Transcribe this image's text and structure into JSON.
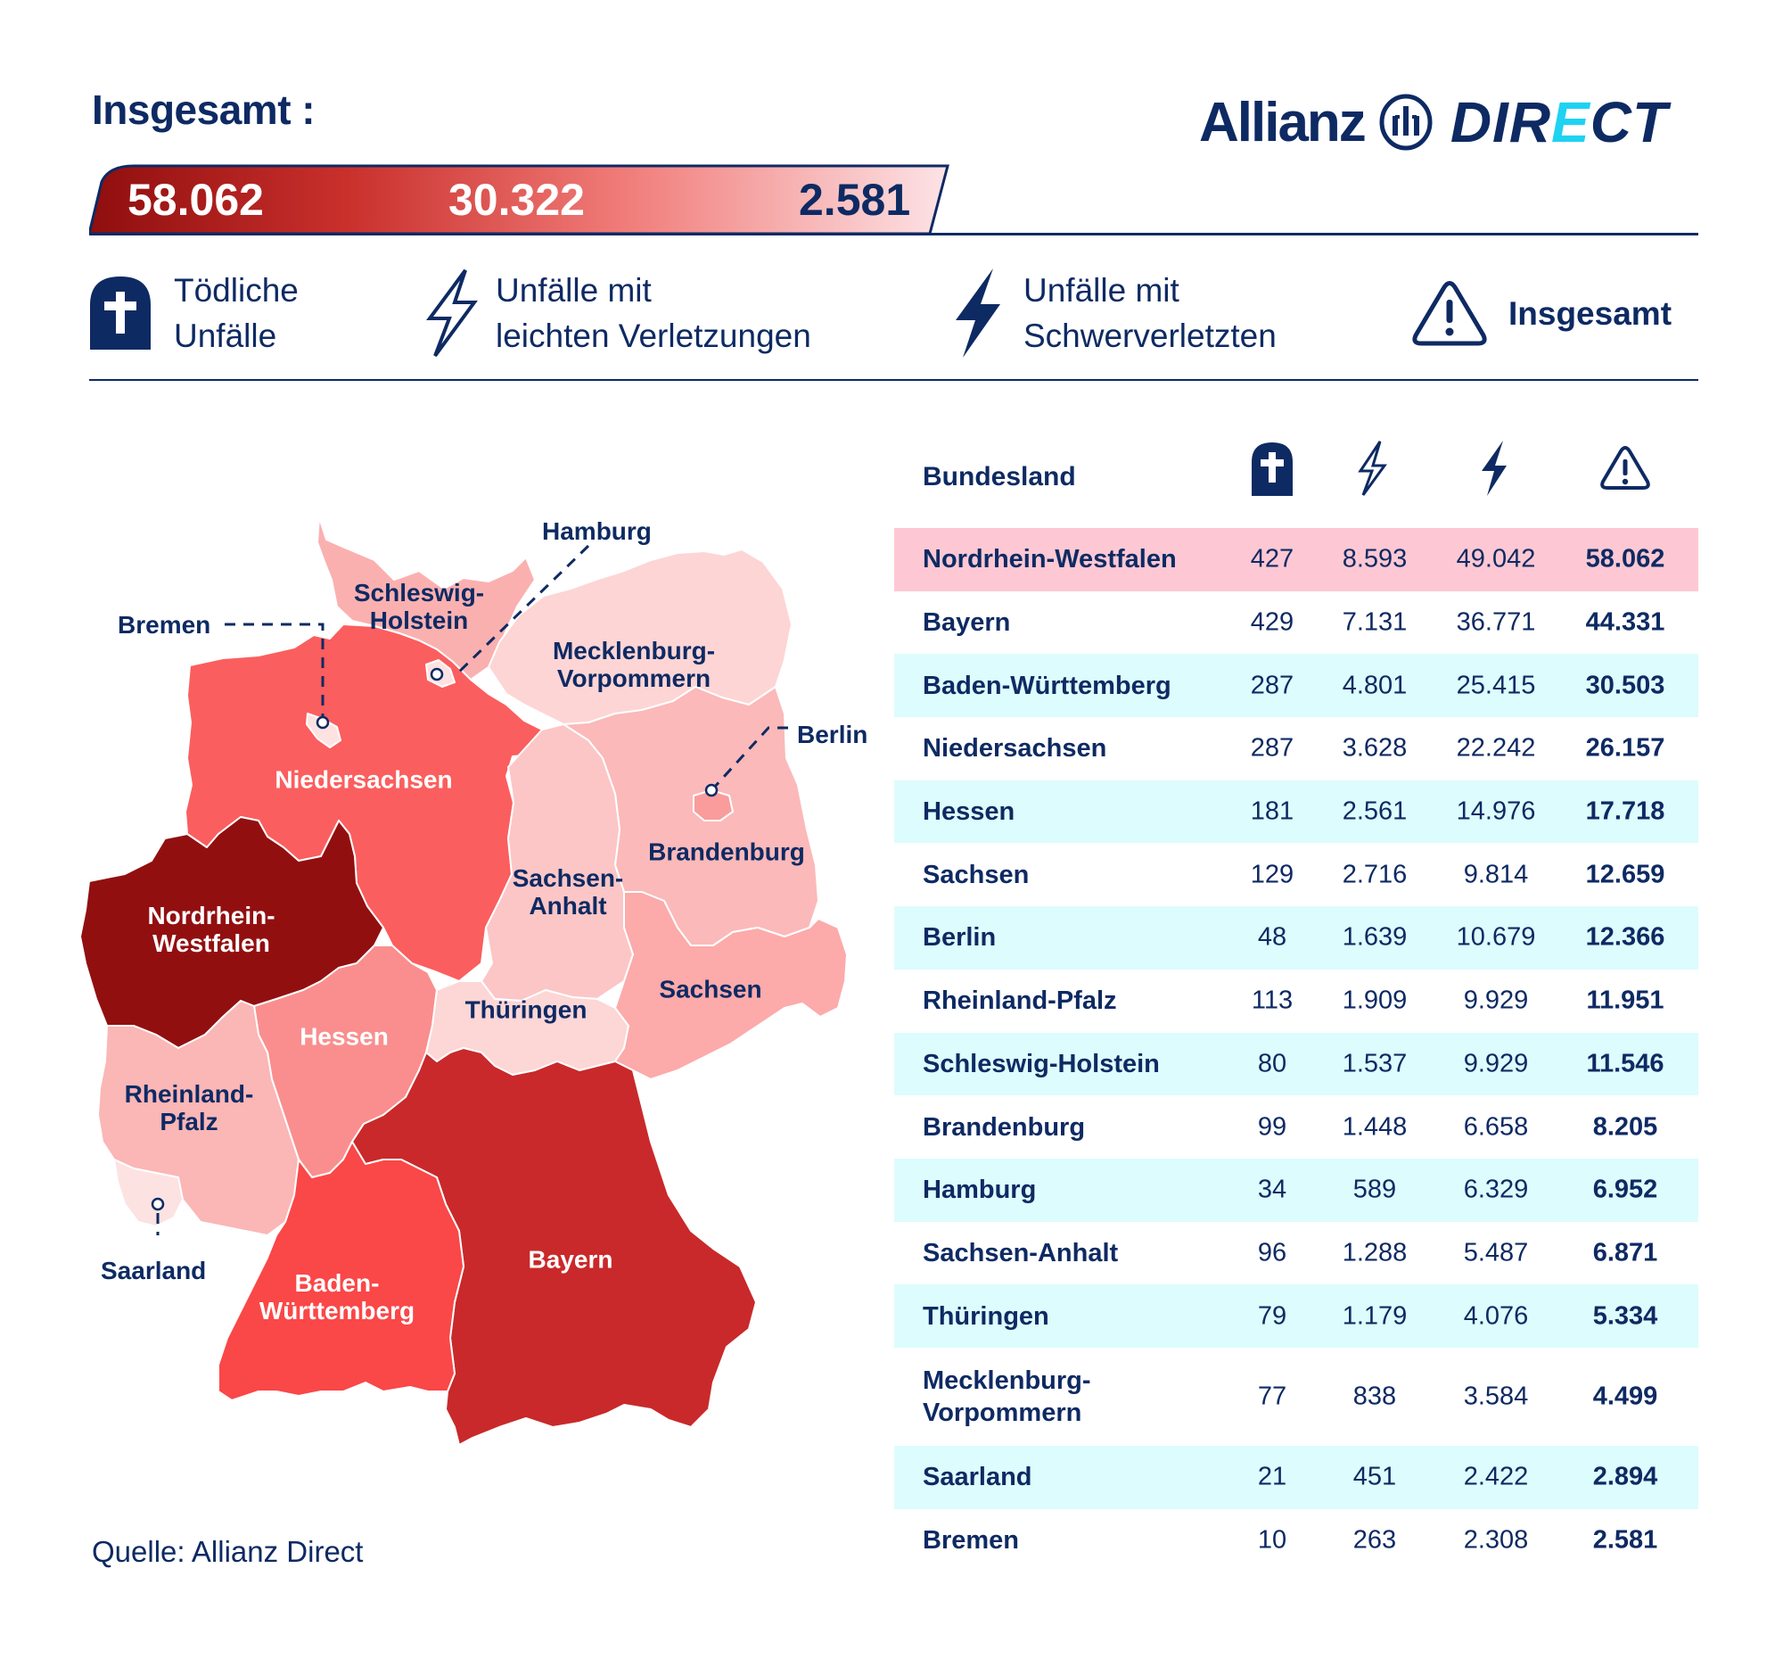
{
  "header": {
    "title": "Insgesamt :",
    "logo": {
      "brand": "Allianz",
      "product_pre": "DIR",
      "product_e": "E",
      "product_post": "CT"
    }
  },
  "totals": {
    "values": [
      "58.062",
      "30.322",
      "2.581"
    ],
    "gradient_colors": [
      "#8f0e0e",
      "#c9302c",
      "#f07b78",
      "#fde3e6"
    ]
  },
  "legend": [
    {
      "icon": "tombstone-icon",
      "line1": "Tödliche",
      "line2": "Unfälle"
    },
    {
      "icon": "lightning-outline-icon",
      "line1": "Unfälle mit",
      "line2": "leichten Verletzungen"
    },
    {
      "icon": "lightning-filled-icon",
      "line1": "Unfälle mit",
      "line2": "Schwerverletzten"
    },
    {
      "icon": "warning-icon",
      "line1": "Insgesamt",
      "line2": ""
    }
  ],
  "map": {
    "regions": [
      {
        "name": "Schleswig-Holstein",
        "label_lines": [
          "Schleswig-",
          "Holstein"
        ],
        "color": "#fbb0b0",
        "label_color": "blue"
      },
      {
        "name": "Mecklenburg-Vorpommern",
        "label_lines": [
          "Mecklenburg-",
          "Vorpommern"
        ],
        "color": "#fdd5d5",
        "label_color": "blue"
      },
      {
        "name": "Niedersachsen",
        "label_lines": [
          "Niedersachsen"
        ],
        "color": "#fb5e5e",
        "label_color": "white"
      },
      {
        "name": "Brandenburg",
        "label_lines": [
          "Brandenburg"
        ],
        "color": "#fbb9b9",
        "label_color": "blue"
      },
      {
        "name": "Sachsen-Anhalt",
        "label_lines": [
          "Sachsen-",
          "Anhalt"
        ],
        "color": "#fcc6c6",
        "label_color": "blue"
      },
      {
        "name": "Nordrhein-Westfalen",
        "label_lines": [
          "Nordrhein-",
          "Westfalen"
        ],
        "color": "#920f10",
        "label_color": "white"
      },
      {
        "name": "Thüringen",
        "label_lines": [
          "Thüringen"
        ],
        "color": "#fdd6d6",
        "label_color": "blue"
      },
      {
        "name": "Sachsen",
        "label_lines": [
          "Sachsen"
        ],
        "color": "#fcaaaa",
        "label_color": "blue"
      },
      {
        "name": "Hessen",
        "label_lines": [
          "Hessen"
        ],
        "color": "#fa8e8e",
        "label_color": "white"
      },
      {
        "name": "Rheinland-Pfalz",
        "label_lines": [
          "Rheinland-",
          "Pfalz"
        ],
        "color": "#fbb6b6",
        "label_color": "blue"
      },
      {
        "name": "Bayern",
        "label_lines": [
          "Bayern"
        ],
        "color": "#c9292a",
        "label_color": "white"
      },
      {
        "name": "Baden-Württemberg",
        "label_lines": [
          "Baden-",
          "Württemberg"
        ],
        "color": "#fa4748",
        "label_color": "white"
      },
      {
        "name": "Saarland",
        "label_lines": [
          "Saarland"
        ],
        "color": "#fde2e2",
        "label_color": "blue"
      }
    ],
    "callouts": {
      "hamburg": "Hamburg",
      "bremen": "Bremen",
      "berlin": "Berlin",
      "saarland": "Saarland"
    }
  },
  "source": "Quelle: Allianz Direct",
  "table": {
    "header": {
      "name": "Bundesland",
      "icons": [
        "tombstone-icon",
        "lightning-outline-icon",
        "lightning-filled-icon",
        "warning-icon"
      ]
    },
    "rows": [
      {
        "name": "Nordrhein-Westfalen",
        "fatal": "427",
        "light": "8.593",
        "severe": "49.042",
        "total": "58.062",
        "bg": "pink"
      },
      {
        "name": "Bayern",
        "fatal": "429",
        "light": "7.131",
        "severe": "36.771",
        "total": "44.331",
        "bg": "white"
      },
      {
        "name": "Baden-Württemberg",
        "fatal": "287",
        "light": "4.801",
        "severe": "25.415",
        "total": "30.503",
        "bg": "cyan"
      },
      {
        "name": "Niedersachsen",
        "fatal": "287",
        "light": "3.628",
        "severe": "22.242",
        "total": "26.157",
        "bg": "white"
      },
      {
        "name": "Hessen",
        "fatal": "181",
        "light": "2.561",
        "severe": "14.976",
        "total": "17.718",
        "bg": "cyan"
      },
      {
        "name": "Sachsen",
        "fatal": "129",
        "light": "2.716",
        "severe": "9.814",
        "total": "12.659",
        "bg": "white"
      },
      {
        "name": "Berlin",
        "fatal": "48",
        "light": "1.639",
        "severe": "10.679",
        "total": "12.366",
        "bg": "cyan"
      },
      {
        "name": "Rheinland-Pfalz",
        "fatal": "113",
        "light": "1.909",
        "severe": "9.929",
        "total": "11.951",
        "bg": "white"
      },
      {
        "name": "Schleswig-Holstein",
        "fatal": "80",
        "light": "1.537",
        "severe": "9.929",
        "total": "11.546",
        "bg": "cyan"
      },
      {
        "name": "Brandenburg",
        "fatal": "99",
        "light": "1.448",
        "severe": "6.658",
        "total": "8.205",
        "bg": "white"
      },
      {
        "name": "Hamburg",
        "fatal": "34",
        "light": "589",
        "severe": "6.329",
        "total": "6.952",
        "bg": "cyan"
      },
      {
        "name": "Sachsen-Anhalt",
        "fatal": "96",
        "light": "1.288",
        "severe": "5.487",
        "total": "6.871",
        "bg": "white"
      },
      {
        "name": "Thüringen",
        "fatal": "79",
        "light": "1.179",
        "severe": "4.076",
        "total": "5.334",
        "bg": "cyan"
      },
      {
        "name": "Mecklenburg-\nVorpommern",
        "fatal": "77",
        "light": "838",
        "severe": "3.584",
        "total": "4.499",
        "bg": "white"
      },
      {
        "name": "Saarland",
        "fatal": "21",
        "light": "451",
        "severe": "2.422",
        "total": "2.894",
        "bg": "cyan"
      },
      {
        "name": "Bremen",
        "fatal": "10",
        "light": "263",
        "severe": "2.308",
        "total": "2.581",
        "bg": "white"
      }
    ]
  },
  "colors": {
    "navy": "#0e2a63",
    "highlight_row": "#fdc8d3",
    "stripe_row": "#ddfcfd",
    "logo_accent": "#1fd2f2"
  },
  "chart_data": {
    "type": "table",
    "title": "Insgesamt",
    "columns": [
      "Bundesland",
      "Tödliche Unfälle",
      "Unfälle mit leichten Verletzungen",
      "Unfälle mit Schwerverletzten",
      "Insgesamt"
    ],
    "categories": [
      "Nordrhein-Westfalen",
      "Bayern",
      "Baden-Württemberg",
      "Niedersachsen",
      "Hessen",
      "Sachsen",
      "Berlin",
      "Rheinland-Pfalz",
      "Schleswig-Holstein",
      "Brandenburg",
      "Hamburg",
      "Sachsen-Anhalt",
      "Thüringen",
      "Mecklenburg-Vorpommern",
      "Saarland",
      "Bremen"
    ],
    "series": [
      {
        "name": "Tödliche Unfälle",
        "values": [
          427,
          429,
          287,
          287,
          181,
          129,
          48,
          113,
          80,
          99,
          34,
          96,
          79,
          77,
          21,
          10
        ]
      },
      {
        "name": "Unfälle mit leichten Verletzungen",
        "values": [
          8593,
          7131,
          4801,
          3628,
          2561,
          2716,
          1639,
          1909,
          1537,
          1448,
          589,
          1288,
          1179,
          838,
          451,
          263
        ]
      },
      {
        "name": "Unfälle mit Schwerverletzten",
        "values": [
          49042,
          36771,
          25415,
          22242,
          14976,
          9814,
          10679,
          9929,
          9929,
          6658,
          6329,
          5487,
          4076,
          3584,
          2422,
          2308
        ]
      },
      {
        "name": "Insgesamt",
        "values": [
          58062,
          44331,
          30503,
          26157,
          17718,
          12659,
          12366,
          11951,
          11546,
          8205,
          6952,
          6871,
          5334,
          4499,
          2894,
          2581
        ]
      }
    ],
    "scale_legend": [
      "58.062",
      "30.322",
      "2.581"
    ],
    "map": "choropleth of Germany by Bundesland, shaded by Insgesamt",
    "source": "Quelle: Allianz Direct"
  }
}
